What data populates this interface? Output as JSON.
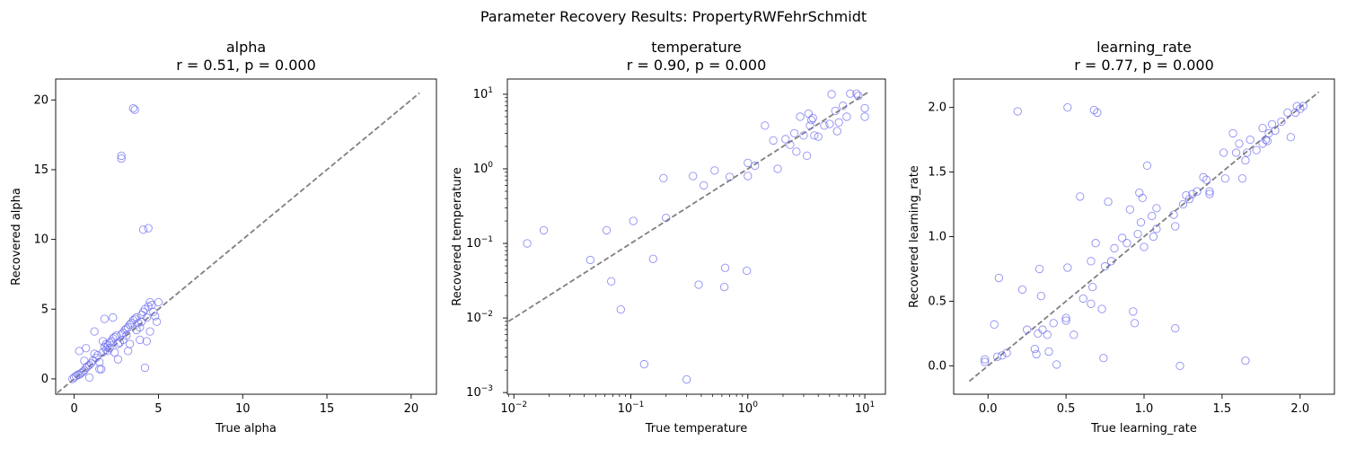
{
  "figure": {
    "suptitle": "Parameter Recovery Results: PropertyRWFehrSchmidt"
  },
  "chart_data": [
    {
      "type": "scatter",
      "title_name": "alpha",
      "title_stats": "r = 0.51, p = 0.000",
      "xlabel": "True alpha",
      "ylabel": "Recovered alpha",
      "xscale": "linear",
      "yscale": "linear",
      "xlim": [
        -1.1,
        21.5
      ],
      "ylim": [
        -1.1,
        21.5
      ],
      "xticks": [
        0,
        5,
        10,
        15,
        20
      ],
      "yticks": [
        0,
        5,
        10,
        15,
        20
      ],
      "xtick_labels": [
        "0",
        "5",
        "10",
        "15",
        "20"
      ],
      "ytick_labels": [
        "0",
        "5",
        "10",
        "15",
        "20"
      ],
      "identity_line": [
        -1.0,
        20.5
      ],
      "marker_color": "#6a6af0",
      "line_color": "#808080",
      "points": [
        [
          3.5,
          19.4
        ],
        [
          3.6,
          19.3
        ],
        [
          2.8,
          16.0
        ],
        [
          2.8,
          15.8
        ],
        [
          4.1,
          10.7
        ],
        [
          4.4,
          10.8
        ],
        [
          4.2,
          0.8
        ],
        [
          -0.1,
          0.0
        ],
        [
          0.0,
          0.1
        ],
        [
          0.1,
          0.2
        ],
        [
          0.2,
          0.3
        ],
        [
          0.3,
          0.3
        ],
        [
          0.4,
          0.4
        ],
        [
          0.5,
          0.5
        ],
        [
          0.6,
          0.6
        ],
        [
          0.7,
          0.8
        ],
        [
          0.8,
          0.9
        ],
        [
          0.9,
          1.0
        ],
        [
          0.9,
          0.1
        ],
        [
          0.6,
          1.3
        ],
        [
          0.3,
          2.0
        ],
        [
          0.7,
          2.2
        ],
        [
          1.0,
          1.1
        ],
        [
          1.1,
          1.3
        ],
        [
          1.2,
          1.8
        ],
        [
          1.3,
          1.5
        ],
        [
          1.4,
          1.7
        ],
        [
          1.5,
          1.2
        ],
        [
          1.6,
          0.7
        ],
        [
          1.5,
          0.7
        ],
        [
          1.7,
          1.9
        ],
        [
          1.8,
          2.3
        ],
        [
          1.9,
          2.1
        ],
        [
          2.0,
          2.4
        ],
        [
          2.1,
          2.6
        ],
        [
          2.2,
          2.7
        ],
        [
          2.3,
          2.9
        ],
        [
          2.4,
          3.0
        ],
        [
          2.5,
          3.1
        ],
        [
          2.6,
          2.5
        ],
        [
          2.7,
          2.6
        ],
        [
          2.8,
          3.2
        ],
        [
          2.9,
          3.3
        ],
        [
          3.0,
          3.5
        ],
        [
          3.1,
          3.6
        ],
        [
          3.2,
          3.7
        ],
        [
          3.3,
          3.9
        ],
        [
          3.4,
          4.0
        ],
        [
          3.5,
          4.2
        ],
        [
          3.6,
          4.3
        ],
        [
          3.7,
          4.4
        ],
        [
          3.8,
          4.0
        ],
        [
          3.9,
          3.7
        ],
        [
          4.0,
          4.6
        ],
        [
          4.1,
          4.8
        ],
        [
          4.2,
          5.0
        ],
        [
          4.3,
          4.4
        ],
        [
          4.4,
          5.2
        ],
        [
          4.5,
          5.5
        ],
        [
          4.6,
          5.3
        ],
        [
          4.7,
          4.8
        ],
        [
          4.8,
          4.5
        ],
        [
          4.9,
          4.1
        ],
        [
          5.0,
          5.5
        ],
        [
          1.2,
          3.4
        ],
        [
          1.8,
          4.3
        ],
        [
          2.3,
          4.4
        ],
        [
          1.7,
          2.7
        ],
        [
          2.0,
          2.0
        ],
        [
          2.4,
          1.9
        ],
        [
          2.6,
          1.4
        ],
        [
          3.2,
          2.0
        ],
        [
          3.3,
          2.5
        ],
        [
          3.9,
          2.8
        ],
        [
          4.3,
          2.7
        ],
        [
          4.5,
          3.4
        ],
        [
          2.9,
          2.8
        ],
        [
          3.1,
          3.1
        ],
        [
          2.1,
          2.2
        ],
        [
          1.9,
          2.5
        ],
        [
          3.7,
          3.5
        ],
        [
          4.0,
          4.1
        ]
      ]
    },
    {
      "type": "scatter",
      "title_name": "temperature",
      "title_stats": "r = 0.90, p = 0.000",
      "xlabel": "True temperature",
      "ylabel": "Recovered temperature",
      "xscale": "log",
      "yscale": "log",
      "xlim": [
        0.0088,
        15
      ],
      "ylim": [
        0.00095,
        16
      ],
      "xticks": [
        0.01,
        0.1,
        1,
        10
      ],
      "yticks": [
        0.001,
        0.01,
        0.1,
        1,
        10
      ],
      "xtick_labels": [
        "10",
        "10",
        "10",
        "10"
      ],
      "xtick_exps": [
        "−2",
        "−1",
        "0",
        "1"
      ],
      "ytick_labels": [
        "10",
        "10",
        "10",
        "10",
        "10"
      ],
      "ytick_exps": [
        "−3",
        "−2",
        "−1",
        "0",
        "1"
      ],
      "identity_line": [
        0.009,
        11
      ],
      "marker_color": "#6a6af0",
      "line_color": "#808080",
      "points": [
        [
          0.013,
          0.1
        ],
        [
          0.018,
          0.15
        ],
        [
          0.045,
          0.06
        ],
        [
          0.062,
          0.15
        ],
        [
          0.068,
          0.031
        ],
        [
          0.082,
          0.013
        ],
        [
          0.105,
          0.2
        ],
        [
          0.13,
          0.0024
        ],
        [
          0.155,
          0.062
        ],
        [
          0.19,
          0.75
        ],
        [
          0.2,
          0.22
        ],
        [
          0.3,
          0.0015
        ],
        [
          0.34,
          0.8
        ],
        [
          0.38,
          0.028
        ],
        [
          0.42,
          0.6
        ],
        [
          0.52,
          0.95
        ],
        [
          0.63,
          0.026
        ],
        [
          0.64,
          0.047
        ],
        [
          0.7,
          0.78
        ],
        [
          0.98,
          0.043
        ],
        [
          1.0,
          1.2
        ],
        [
          1.0,
          0.8
        ],
        [
          1.15,
          1.1
        ],
        [
          1.4,
          3.8
        ],
        [
          1.65,
          2.4
        ],
        [
          1.8,
          1.0
        ],
        [
          2.1,
          2.5
        ],
        [
          2.3,
          2.1
        ],
        [
          2.5,
          3.0
        ],
        [
          2.6,
          1.7
        ],
        [
          2.8,
          5.0
        ],
        [
          3.0,
          2.8
        ],
        [
          3.2,
          1.5
        ],
        [
          3.3,
          5.5
        ],
        [
          3.5,
          4.5
        ],
        [
          3.7,
          2.8
        ],
        [
          4.0,
          2.7
        ],
        [
          4.5,
          3.8
        ],
        [
          5.2,
          10.0
        ],
        [
          5.0,
          4.0
        ],
        [
          5.6,
          6.0
        ],
        [
          5.8,
          3.2
        ],
        [
          6.0,
          4.2
        ],
        [
          6.5,
          7.0
        ],
        [
          7.0,
          5.0
        ],
        [
          7.5,
          10.2
        ],
        [
          8.5,
          10.2
        ],
        [
          8.8,
          9.5
        ],
        [
          10.0,
          6.5
        ],
        [
          10.0,
          5.0
        ],
        [
          3.4,
          3.8
        ],
        [
          3.6,
          4.8
        ]
      ]
    },
    {
      "type": "scatter",
      "title_name": "learning_rate",
      "title_stats": "r = 0.77, p = 0.000",
      "xlabel": "True learning_rate",
      "ylabel": "Recovered learning_rate",
      "xscale": "linear",
      "yscale": "linear",
      "xlim": [
        -0.22,
        2.22
      ],
      "ylim": [
        -0.22,
        2.22
      ],
      "xticks": [
        0.0,
        0.5,
        1.0,
        1.5,
        2.0
      ],
      "yticks": [
        0.0,
        0.5,
        1.0,
        1.5,
        2.0
      ],
      "xtick_labels": [
        "0.0",
        "0.5",
        "1.0",
        "1.5",
        "2.0"
      ],
      "ytick_labels": [
        "0.0",
        "0.5",
        "1.0",
        "1.5",
        "2.0"
      ],
      "identity_line": [
        -0.12,
        2.12
      ],
      "marker_color": "#6a6af0",
      "line_color": "#808080",
      "points": [
        [
          0.19,
          1.97
        ],
        [
          0.51,
          2.0
        ],
        [
          0.68,
          1.98
        ],
        [
          0.7,
          1.96
        ],
        [
          -0.02,
          0.05
        ],
        [
          -0.02,
          0.03
        ],
        [
          0.04,
          0.32
        ],
        [
          0.06,
          0.07
        ],
        [
          0.07,
          0.68
        ],
        [
          0.09,
          0.08
        ],
        [
          0.12,
          0.1
        ],
        [
          0.22,
          0.59
        ],
        [
          0.25,
          0.28
        ],
        [
          0.3,
          0.13
        ],
        [
          0.31,
          0.09
        ],
        [
          0.32,
          0.25
        ],
        [
          0.33,
          0.75
        ],
        [
          0.34,
          0.54
        ],
        [
          0.35,
          0.28
        ],
        [
          0.38,
          0.24
        ],
        [
          0.39,
          0.11
        ],
        [
          0.42,
          0.33
        ],
        [
          0.44,
          0.01
        ],
        [
          0.5,
          0.37
        ],
        [
          0.5,
          0.35
        ],
        [
          0.51,
          0.76
        ],
        [
          0.55,
          0.24
        ],
        [
          0.59,
          1.31
        ],
        [
          0.61,
          0.52
        ],
        [
          0.66,
          0.81
        ],
        [
          0.66,
          0.48
        ],
        [
          0.67,
          0.61
        ],
        [
          0.69,
          0.95
        ],
        [
          0.73,
          0.44
        ],
        [
          0.74,
          0.06
        ],
        [
          0.75,
          0.77
        ],
        [
          0.77,
          1.27
        ],
        [
          0.79,
          0.81
        ],
        [
          0.81,
          0.91
        ],
        [
          0.86,
          0.99
        ],
        [
          0.89,
          0.95
        ],
        [
          0.91,
          1.21
        ],
        [
          0.93,
          0.42
        ],
        [
          0.94,
          0.33
        ],
        [
          0.96,
          1.02
        ],
        [
          0.97,
          1.34
        ],
        [
          0.98,
          1.11
        ],
        [
          0.99,
          1.3
        ],
        [
          1.0,
          0.92
        ],
        [
          1.02,
          1.55
        ],
        [
          1.05,
          1.16
        ],
        [
          1.06,
          1.0
        ],
        [
          1.08,
          1.22
        ],
        [
          1.08,
          1.06
        ],
        [
          1.19,
          1.17
        ],
        [
          1.2,
          1.08
        ],
        [
          1.2,
          0.29
        ],
        [
          1.23,
          0.0
        ],
        [
          1.25,
          1.25
        ],
        [
          1.27,
          1.32
        ],
        [
          1.29,
          1.29
        ],
        [
          1.31,
          1.33
        ],
        [
          1.34,
          1.35
        ],
        [
          1.38,
          1.46
        ],
        [
          1.4,
          1.44
        ],
        [
          1.42,
          1.35
        ],
        [
          1.42,
          1.33
        ],
        [
          1.51,
          1.65
        ],
        [
          1.52,
          1.45
        ],
        [
          1.57,
          1.8
        ],
        [
          1.59,
          1.65
        ],
        [
          1.61,
          1.72
        ],
        [
          1.63,
          1.45
        ],
        [
          1.65,
          1.59
        ],
        [
          1.66,
          1.65
        ],
        [
          1.65,
          0.04
        ],
        [
          1.68,
          1.75
        ],
        [
          1.72,
          1.67
        ],
        [
          1.76,
          1.72
        ],
        [
          1.78,
          1.75
        ],
        [
          1.79,
          1.74
        ],
        [
          1.8,
          1.8
        ],
        [
          1.82,
          1.87
        ],
        [
          1.84,
          1.82
        ],
        [
          1.88,
          1.89
        ],
        [
          1.92,
          1.96
        ],
        [
          1.94,
          1.77
        ],
        [
          1.97,
          1.96
        ],
        [
          1.98,
          2.01
        ],
        [
          2.0,
          1.99
        ],
        [
          2.02,
          2.01
        ],
        [
          1.76,
          1.84
        ]
      ]
    }
  ]
}
